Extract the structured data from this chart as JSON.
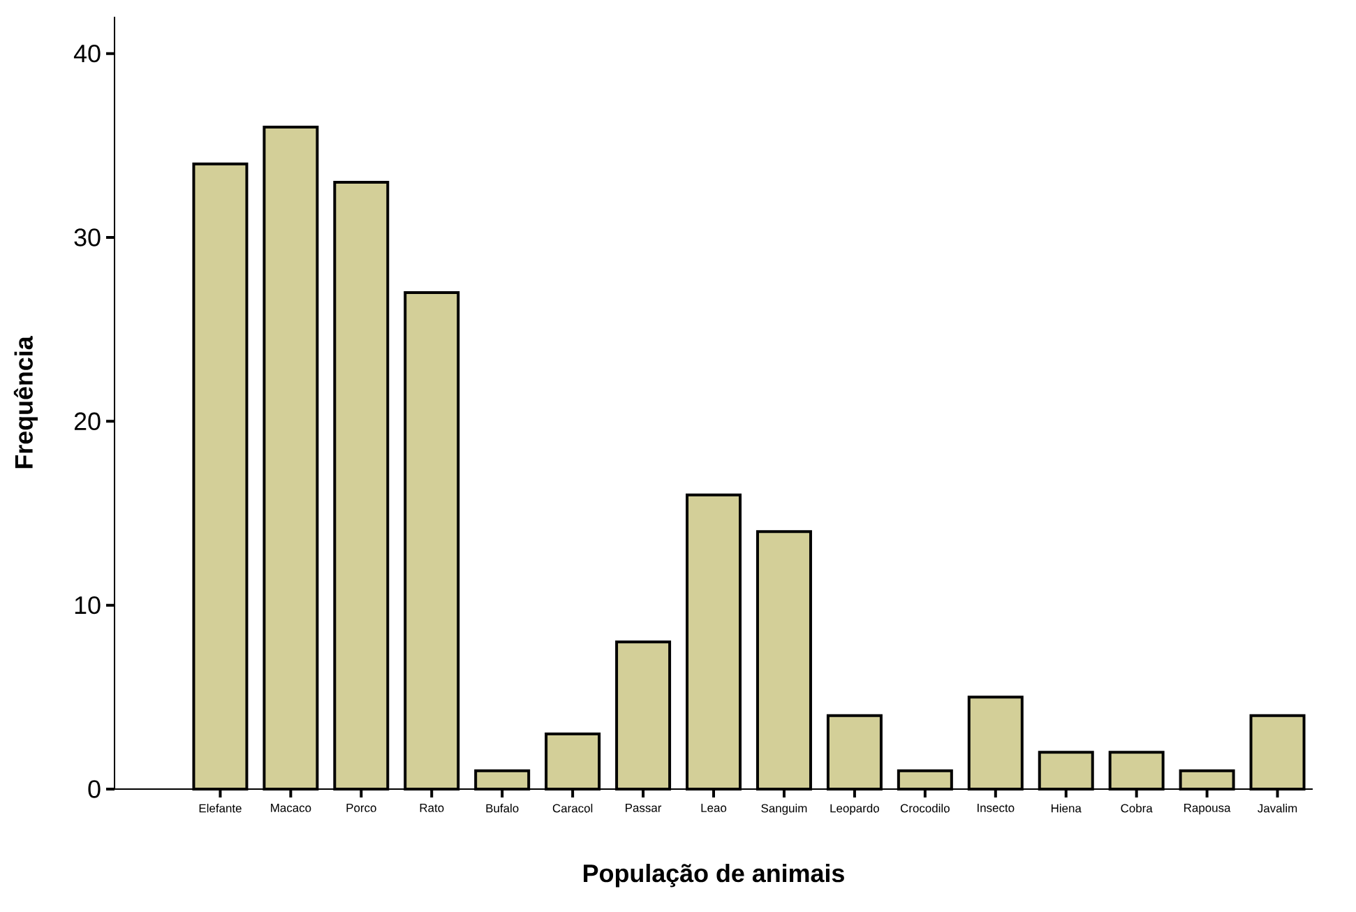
{
  "chart_data": {
    "type": "bar",
    "xlabel": "População de animais",
    "ylabel": "Frequência",
    "categories": [
      "Elefante",
      "Macaco",
      "Porco",
      "Rato",
      "Bufalo",
      "Caracol",
      "Passar",
      "Leao",
      "Sanguim",
      "Leopardo",
      "Crocodilo",
      "Insecto",
      "Hiena",
      "Cobra",
      "Rapousa",
      "Javalim"
    ],
    "values": [
      34,
      36,
      33,
      27,
      1,
      3,
      8,
      16,
      14,
      4,
      1,
      5,
      2,
      2,
      1,
      4
    ],
    "color": "#d3cf98",
    "ylim": [
      0,
      42
    ],
    "yticks": [
      0,
      10,
      20,
      30,
      40
    ]
  }
}
